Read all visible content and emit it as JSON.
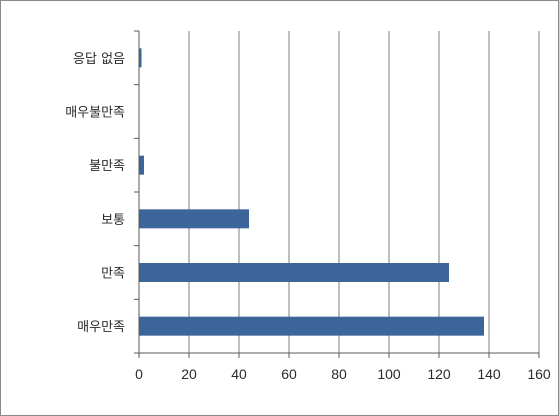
{
  "chart_data": {
    "type": "bar",
    "orientation": "horizontal",
    "categories": [
      "응답 없음",
      "매우불만족",
      "불만족",
      "보통",
      "만족",
      "매우만족"
    ],
    "values": [
      1,
      0,
      2,
      44,
      124,
      138
    ],
    "xlim": [
      0,
      160
    ],
    "xticks": [
      "0",
      "20",
      "40",
      "60",
      "80",
      "100",
      "120",
      "140",
      "160"
    ],
    "grid": true,
    "legend": "none",
    "bar_color": "#3c659a",
    "grid_color": "#7f7f7f",
    "axis_color": "#5a5a5a"
  }
}
